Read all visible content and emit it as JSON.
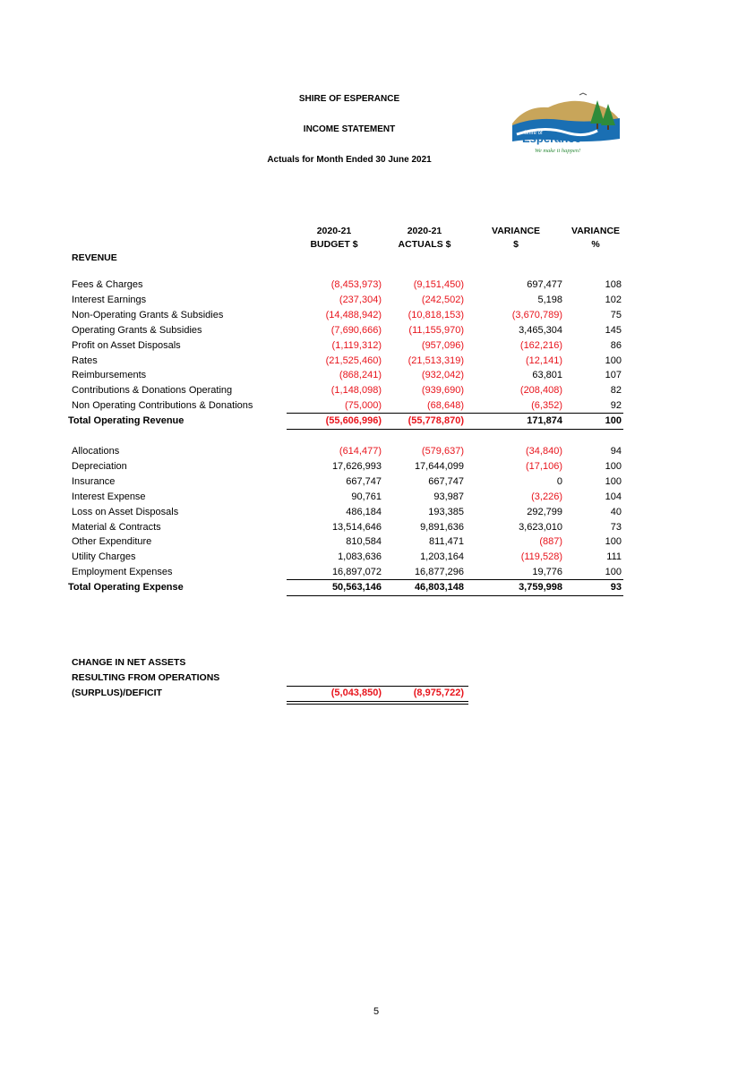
{
  "header": {
    "org": "SHIRE OF ESPERANCE",
    "title": "INCOME STATEMENT",
    "period": "Actuals for Month Ended 30 June 2021"
  },
  "logo": {
    "shire_of": "Shire of",
    "name": "Esperance",
    "tagline": "We make it happen!",
    "brand_blue": "#1a6fb3",
    "brand_green": "#2e8b3a"
  },
  "columns": {
    "budget": [
      "2020-21",
      "BUDGET $"
    ],
    "actuals": [
      "2020-21",
      "ACTUALS $"
    ],
    "variance_amt": [
      "VARIANCE",
      "$"
    ],
    "variance_pct": [
      "VARIANCE",
      "%"
    ]
  },
  "revenue": {
    "heading": "REVENUE",
    "rows": [
      {
        "label": "Fees & Charges",
        "budget": "(8,453,973)",
        "actual": "(9,151,450)",
        "var": "697,477",
        "pct": "108"
      },
      {
        "label": "Interest Earnings",
        "budget": "(237,304)",
        "actual": "(242,502)",
        "var": "5,198",
        "pct": "102"
      },
      {
        "label": "Non-Operating Grants & Subsidies",
        "budget": "(14,488,942)",
        "actual": "(10,818,153)",
        "var": "(3,670,789)",
        "pct": "75"
      },
      {
        "label": "Operating Grants & Subsidies",
        "budget": "(7,690,666)",
        "actual": "(11,155,970)",
        "var": "3,465,304",
        "pct": "145"
      },
      {
        "label": "Profit on Asset Disposals",
        "budget": "(1,119,312)",
        "actual": "(957,096)",
        "var": "(162,216)",
        "pct": "86"
      },
      {
        "label": "Rates",
        "budget": "(21,525,460)",
        "actual": "(21,513,319)",
        "var": "(12,141)",
        "pct": "100"
      },
      {
        "label": "Reimbursements",
        "budget": "(868,241)",
        "actual": "(932,042)",
        "var": "63,801",
        "pct": "107"
      },
      {
        "label": "Contributions & Donations Operating",
        "budget": "(1,148,098)",
        "actual": "(939,690)",
        "var": "(208,408)",
        "pct": "82"
      },
      {
        "label": "Non Operating Contributions & Donations",
        "budget": "(75,000)",
        "actual": "(68,648)",
        "var": "(6,352)",
        "pct": "92"
      }
    ],
    "total": {
      "label": "Total Operating Revenue",
      "budget": "(55,606,996)",
      "actual": "(55,778,870)",
      "var": "171,874",
      "pct": "100"
    }
  },
  "expense": {
    "rows": [
      {
        "label": "Allocations",
        "budget": "(614,477)",
        "actual": "(579,637)",
        "var": "(34,840)",
        "pct": "94"
      },
      {
        "label": "Depreciation",
        "budget": "17,626,993",
        "actual": "17,644,099",
        "var": "(17,106)",
        "pct": "100"
      },
      {
        "label": "Insurance",
        "budget": "667,747",
        "actual": "667,747",
        "var": "0",
        "pct": "100"
      },
      {
        "label": "Interest Expense",
        "budget": "90,761",
        "actual": "93,987",
        "var": "(3,226)",
        "pct": "104"
      },
      {
        "label": "Loss on Asset Disposals",
        "budget": "486,184",
        "actual": "193,385",
        "var": "292,799",
        "pct": "40"
      },
      {
        "label": "Material & Contracts",
        "budget": "13,514,646",
        "actual": "9,891,636",
        "var": "3,623,010",
        "pct": "73"
      },
      {
        "label": "Other Expenditure",
        "budget": "810,584",
        "actual": "811,471",
        "var": "(887)",
        "pct": "100"
      },
      {
        "label": "Utility Charges",
        "budget": "1,083,636",
        "actual": "1,203,164",
        "var": "(119,528)",
        "pct": "111"
      },
      {
        "label": "Employment Expenses",
        "budget": "16,897,072",
        "actual": "16,877,296",
        "var": "19,776",
        "pct": "100"
      }
    ],
    "total": {
      "label": "Total Operating Expense",
      "budget": "50,563,146",
      "actual": "46,803,148",
      "var": "3,759,998",
      "pct": "93"
    }
  },
  "summary": {
    "lines": [
      "CHANGE IN NET ASSETS",
      "RESULTING FROM OPERATIONS",
      "(SURPLUS)/DEFICIT"
    ],
    "budget": "(5,043,850)",
    "actual": "(8,975,722)"
  },
  "page_number": "5"
}
